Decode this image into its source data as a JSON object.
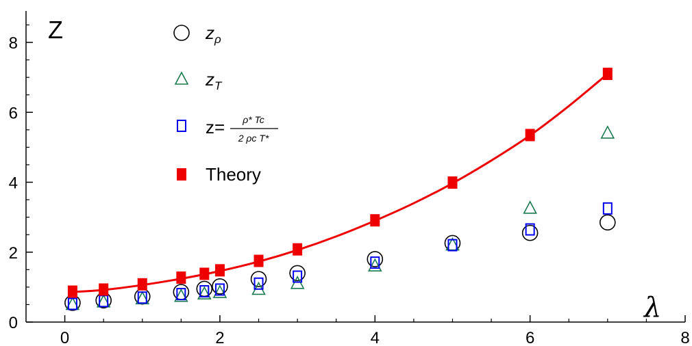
{
  "chart_data": {
    "type": "scatter",
    "title": "",
    "xlabel": "λ",
    "ylabel": "Z",
    "xlim": [
      -0.5,
      8
    ],
    "ylim": [
      0,
      8.9
    ],
    "x_ticks": [
      "0",
      "2",
      "4",
      "6",
      "8"
    ],
    "y_ticks": [
      "0",
      "2",
      "4",
      "6",
      "8"
    ],
    "grid": false,
    "legend_position": "top-left",
    "series": [
      {
        "name": "z_ρ",
        "marker": "open-circle",
        "color": "#000000",
        "x": [
          0.1,
          0.5,
          1.0,
          1.5,
          1.8,
          2.0,
          2.5,
          3.0,
          4.0,
          5.0,
          6.0,
          7.0
        ],
        "y": [
          0.55,
          0.62,
          0.73,
          0.86,
          0.95,
          1.02,
          1.23,
          1.4,
          1.8,
          2.26,
          2.55,
          2.85
        ]
      },
      {
        "name": "z_T",
        "marker": "open-triangle",
        "color": "#1b7a50",
        "x": [
          0.1,
          0.5,
          1.0,
          1.5,
          1.8,
          2.0,
          2.5,
          3.0,
          4.0,
          5.0,
          6.0,
          7.0
        ],
        "y": [
          0.5,
          0.57,
          0.66,
          0.73,
          0.8,
          0.84,
          0.93,
          1.1,
          1.6,
          2.2,
          3.25,
          5.4
        ]
      },
      {
        "name": "z=ρ* Tc / 2 ρc T*",
        "marker": "open-square",
        "color": "#0000ee",
        "x": [
          0.1,
          0.5,
          1.0,
          1.5,
          1.8,
          2.0,
          2.5,
          3.0,
          4.0,
          5.0,
          6.0,
          7.0
        ],
        "y": [
          0.52,
          0.6,
          0.7,
          0.8,
          0.88,
          0.93,
          1.1,
          1.3,
          1.7,
          2.2,
          2.65,
          3.25
        ]
      },
      {
        "name": "Theory",
        "marker": "filled-square",
        "color": "#ee0000",
        "x": [
          0.1,
          0.5,
          1.0,
          1.5,
          1.8,
          2.0,
          2.5,
          3.0,
          4.0,
          5.0,
          6.0,
          7.0
        ],
        "y": [
          0.87,
          0.93,
          1.08,
          1.27,
          1.38,
          1.48,
          1.75,
          2.08,
          2.91,
          3.99,
          5.35,
          7.1
        ]
      }
    ],
    "fit_curve": {
      "name": "Theory fit",
      "color": "#ee0000",
      "x": [
        0.1,
        0.5,
        1.0,
        1.5,
        2.0,
        2.5,
        3.0,
        3.5,
        4.0,
        4.5,
        5.0,
        5.5,
        6.0,
        6.5,
        7.0
      ],
      "y": [
        0.86,
        0.92,
        1.06,
        1.24,
        1.46,
        1.73,
        2.06,
        2.45,
        2.9,
        3.4,
        3.97,
        4.62,
        5.34,
        6.18,
        7.1
      ]
    }
  },
  "legend": {
    "items": [
      {
        "label_main": "z",
        "label_sub": "ρ",
        "type": "sub"
      },
      {
        "label_main": "z",
        "label_sub": "T",
        "type": "sub"
      },
      {
        "label_prefix": "z=",
        "numerator": "ρ* Tc",
        "denominator": "2 ρc T*",
        "type": "fraction"
      },
      {
        "label_main": "Theory",
        "type": "plain"
      }
    ]
  }
}
